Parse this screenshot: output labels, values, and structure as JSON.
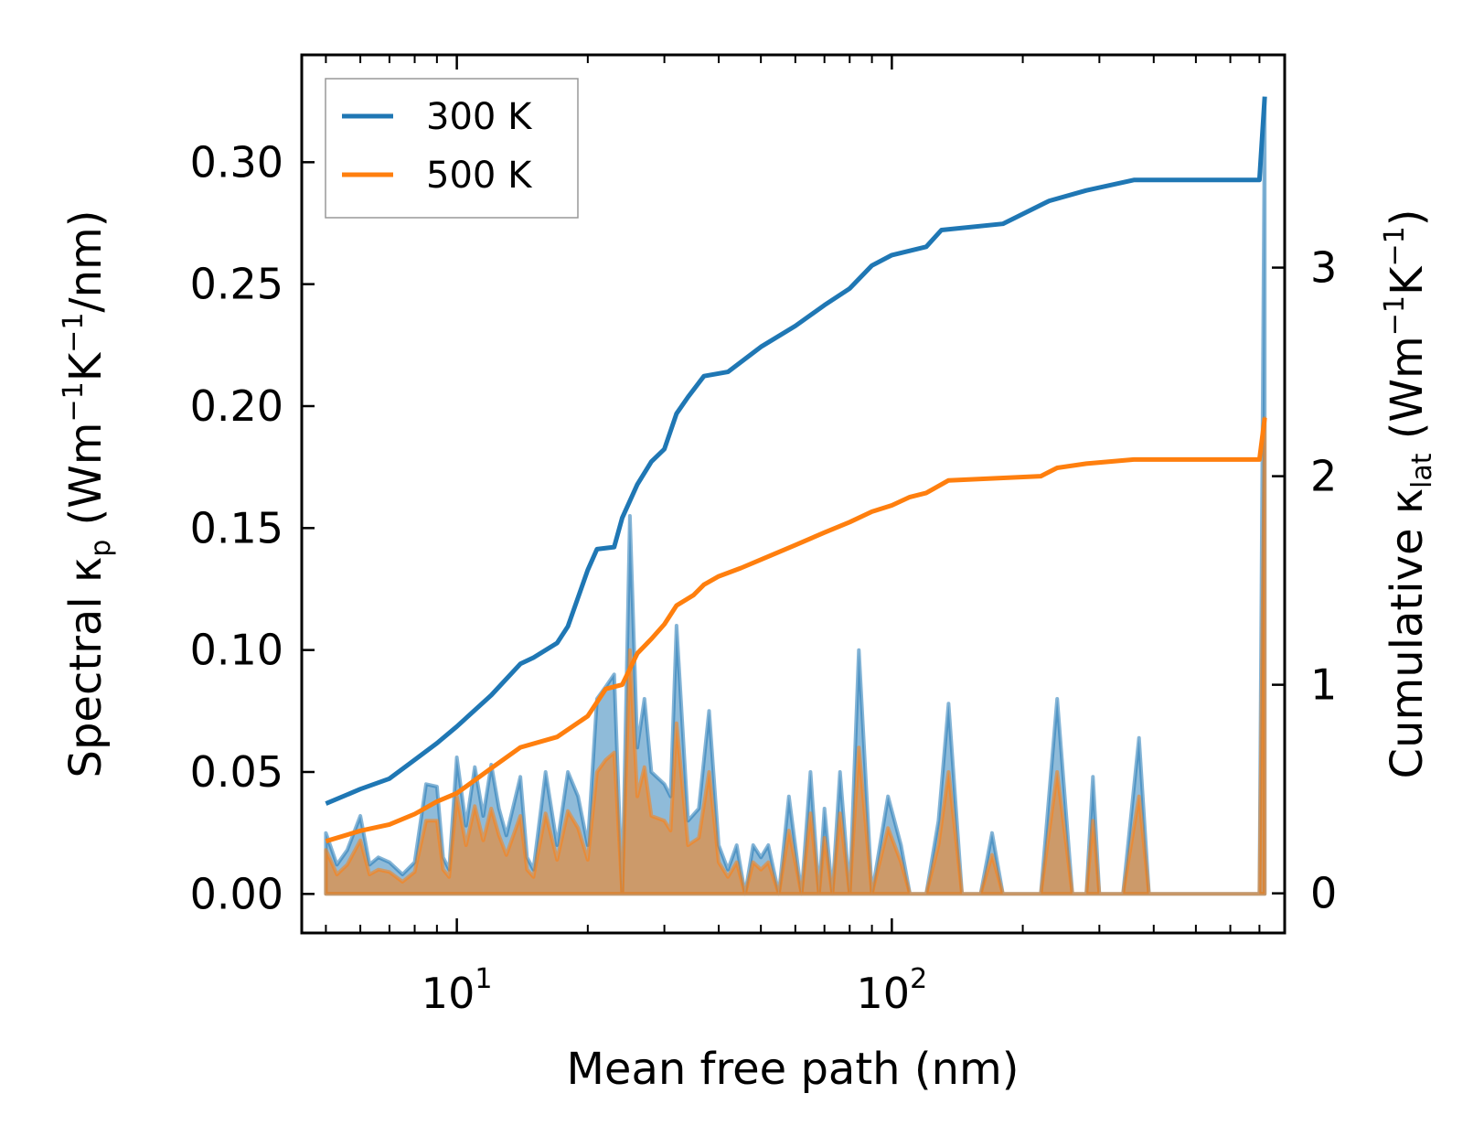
{
  "chart_data": {
    "type": "line",
    "xscale": "log",
    "xlabel": "Mean free path (nm)",
    "xlim": [
      4.4,
      800
    ],
    "xticks": [
      {
        "value": 10,
        "base": "10",
        "exp": "1"
      },
      {
        "value": 100,
        "base": "10",
        "exp": "2"
      }
    ],
    "left_axis": {
      "label_prefix": "Spectral κ",
      "label_sub": "p",
      "label_unit_open": " (Wm",
      "label_exp1": "−1",
      "label_k": "K",
      "label_exp2": "−1",
      "label_unit_close": "/nm)",
      "ylim": [
        -0.016,
        0.344
      ],
      "ticks": [
        0.0,
        0.05,
        0.1,
        0.15,
        0.2,
        0.25,
        0.3
      ],
      "tick_labels": [
        "0.00",
        "0.05",
        "0.10",
        "0.15",
        "0.20",
        "0.25",
        "0.30"
      ]
    },
    "right_axis": {
      "label_prefix": "Cumulative κ",
      "label_sub": "lat",
      "label_unit_open": " (Wm",
      "label_exp1": "−1",
      "label_k": "K",
      "label_exp2": "−1",
      "label_unit_close": ")",
      "ylim": [
        -0.19,
        4.02
      ],
      "ticks": [
        0,
        1,
        2,
        3
      ],
      "tick_labels": [
        "0",
        "1",
        "2",
        "3"
      ]
    },
    "legend": {
      "position": "top-left",
      "entries": [
        "300 K",
        "500 K"
      ]
    },
    "colors": {
      "300 K": "#1f77b4",
      "500 K": "#ff7f0e"
    },
    "series": [
      {
        "name": "300 K",
        "cumulative": [
          [
            5,
            0.43
          ],
          [
            6,
            0.5
          ],
          [
            7,
            0.55
          ],
          [
            8,
            0.64
          ],
          [
            9,
            0.72
          ],
          [
            10,
            0.8
          ],
          [
            12,
            0.95
          ],
          [
            14,
            1.1
          ],
          [
            15,
            1.13
          ],
          [
            17,
            1.2
          ],
          [
            18,
            1.28
          ],
          [
            20,
            1.55
          ],
          [
            21,
            1.65
          ],
          [
            23,
            1.66
          ],
          [
            24,
            1.8
          ],
          [
            26,
            1.96
          ],
          [
            28,
            2.07
          ],
          [
            30,
            2.13
          ],
          [
            32,
            2.3
          ],
          [
            34,
            2.38
          ],
          [
            37,
            2.48
          ],
          [
            42,
            2.5
          ],
          [
            50,
            2.62
          ],
          [
            60,
            2.72
          ],
          [
            70,
            2.82
          ],
          [
            80,
            2.9
          ],
          [
            90,
            3.01
          ],
          [
            100,
            3.06
          ],
          [
            120,
            3.1
          ],
          [
            130,
            3.18
          ],
          [
            180,
            3.21
          ],
          [
            230,
            3.32
          ],
          [
            280,
            3.37
          ],
          [
            360,
            3.42
          ],
          [
            700,
            3.42
          ],
          [
            720,
            3.82
          ]
        ],
        "spectral": [
          [
            5,
            0.025
          ],
          [
            5.3,
            0.012
          ],
          [
            5.6,
            0.018
          ],
          [
            6,
            0.032
          ],
          [
            6.3,
            0.012
          ],
          [
            6.6,
            0.015
          ],
          [
            7,
            0.013
          ],
          [
            7.5,
            0.008
          ],
          [
            8,
            0.013
          ],
          [
            8.5,
            0.045
          ],
          [
            9,
            0.044
          ],
          [
            9.3,
            0.015
          ],
          [
            9.6,
            0.01
          ],
          [
            10,
            0.056
          ],
          [
            10.5,
            0.028
          ],
          [
            11,
            0.052
          ],
          [
            11.5,
            0.032
          ],
          [
            12,
            0.053
          ],
          [
            12.5,
            0.035
          ],
          [
            13,
            0.024
          ],
          [
            14,
            0.048
          ],
          [
            14.5,
            0.015
          ],
          [
            15,
            0.01
          ],
          [
            16,
            0.05
          ],
          [
            17,
            0.02
          ],
          [
            18,
            0.05
          ],
          [
            19,
            0.04
          ],
          [
            20,
            0.02
          ],
          [
            21,
            0.08
          ],
          [
            22,
            0.085
          ],
          [
            23,
            0.09
          ],
          [
            24,
            0.0
          ],
          [
            25,
            0.155
          ],
          [
            26,
            0.06
          ],
          [
            27,
            0.08
          ],
          [
            28,
            0.05
          ],
          [
            30,
            0.045
          ],
          [
            31,
            0.04
          ],
          [
            32,
            0.11
          ],
          [
            34,
            0.03
          ],
          [
            36,
            0.035
          ],
          [
            38,
            0.075
          ],
          [
            40,
            0.02
          ],
          [
            42,
            0.01
          ],
          [
            44,
            0.02
          ],
          [
            46,
            0.0
          ],
          [
            48,
            0.02
          ],
          [
            50,
            0.015
          ],
          [
            52,
            0.02
          ],
          [
            55,
            0.0
          ],
          [
            58,
            0.04
          ],
          [
            62,
            0.0
          ],
          [
            65,
            0.05
          ],
          [
            68,
            0.0
          ],
          [
            70,
            0.035
          ],
          [
            73,
            0.0
          ],
          [
            76,
            0.05
          ],
          [
            80,
            0.0
          ],
          [
            84,
            0.1
          ],
          [
            90,
            0.0
          ],
          [
            98,
            0.04
          ],
          [
            105,
            0.02
          ],
          [
            110,
            0.0
          ],
          [
            120,
            0.0
          ],
          [
            128,
            0.03
          ],
          [
            135,
            0.078
          ],
          [
            145,
            0.0
          ],
          [
            160,
            0.0
          ],
          [
            170,
            0.025
          ],
          [
            180,
            0.0
          ],
          [
            220,
            0.0
          ],
          [
            240,
            0.08
          ],
          [
            260,
            0.0
          ],
          [
            280,
            0.0
          ],
          [
            290,
            0.048
          ],
          [
            300,
            0.0
          ],
          [
            340,
            0.0
          ],
          [
            370,
            0.064
          ],
          [
            390,
            0.0
          ],
          [
            700,
            0.0
          ],
          [
            720,
            0.325
          ]
        ]
      },
      {
        "name": "500 K",
        "cumulative": [
          [
            5,
            0.25
          ],
          [
            6,
            0.3
          ],
          [
            7,
            0.33
          ],
          [
            8,
            0.38
          ],
          [
            9,
            0.44
          ],
          [
            10,
            0.48
          ],
          [
            12,
            0.6
          ],
          [
            14,
            0.7
          ],
          [
            17,
            0.75
          ],
          [
            20,
            0.85
          ],
          [
            22,
            0.98
          ],
          [
            24,
            1.0
          ],
          [
            26,
            1.15
          ],
          [
            28,
            1.22
          ],
          [
            30,
            1.29
          ],
          [
            32,
            1.38
          ],
          [
            35,
            1.43
          ],
          [
            37,
            1.48
          ],
          [
            40,
            1.52
          ],
          [
            45,
            1.56
          ],
          [
            50,
            1.6
          ],
          [
            60,
            1.67
          ],
          [
            70,
            1.73
          ],
          [
            80,
            1.78
          ],
          [
            90,
            1.83
          ],
          [
            100,
            1.86
          ],
          [
            110,
            1.9
          ],
          [
            120,
            1.92
          ],
          [
            135,
            1.98
          ],
          [
            220,
            2.0
          ],
          [
            240,
            2.04
          ],
          [
            280,
            2.06
          ],
          [
            360,
            2.08
          ],
          [
            700,
            2.08
          ],
          [
            720,
            2.28
          ]
        ],
        "spectral": [
          [
            5,
            0.018
          ],
          [
            5.3,
            0.008
          ],
          [
            5.6,
            0.012
          ],
          [
            6,
            0.022
          ],
          [
            6.3,
            0.008
          ],
          [
            6.6,
            0.01
          ],
          [
            7,
            0.009
          ],
          [
            7.5,
            0.005
          ],
          [
            8,
            0.009
          ],
          [
            8.5,
            0.03
          ],
          [
            9,
            0.03
          ],
          [
            9.3,
            0.01
          ],
          [
            9.6,
            0.007
          ],
          [
            10,
            0.04
          ],
          [
            10.5,
            0.02
          ],
          [
            11,
            0.036
          ],
          [
            11.5,
            0.022
          ],
          [
            12,
            0.035
          ],
          [
            12.5,
            0.024
          ],
          [
            13,
            0.016
          ],
          [
            14,
            0.032
          ],
          [
            14.5,
            0.01
          ],
          [
            15,
            0.007
          ],
          [
            16,
            0.033
          ],
          [
            17,
            0.014
          ],
          [
            18,
            0.034
          ],
          [
            19,
            0.027
          ],
          [
            20,
            0.014
          ],
          [
            21,
            0.05
          ],
          [
            22,
            0.055
          ],
          [
            23,
            0.058
          ],
          [
            24,
            0.0
          ],
          [
            25,
            0.1
          ],
          [
            26,
            0.04
          ],
          [
            27,
            0.052
          ],
          [
            28,
            0.032
          ],
          [
            30,
            0.03
          ],
          [
            31,
            0.026
          ],
          [
            32,
            0.07
          ],
          [
            34,
            0.02
          ],
          [
            36,
            0.023
          ],
          [
            38,
            0.05
          ],
          [
            40,
            0.013
          ],
          [
            42,
            0.007
          ],
          [
            44,
            0.013
          ],
          [
            46,
            0.0
          ],
          [
            48,
            0.013
          ],
          [
            50,
            0.01
          ],
          [
            52,
            0.013
          ],
          [
            55,
            0.0
          ],
          [
            58,
            0.026
          ],
          [
            62,
            0.0
          ],
          [
            65,
            0.033
          ],
          [
            68,
            0.0
          ],
          [
            70,
            0.023
          ],
          [
            73,
            0.0
          ],
          [
            76,
            0.033
          ],
          [
            80,
            0.0
          ],
          [
            84,
            0.06
          ],
          [
            90,
            0.0
          ],
          [
            98,
            0.027
          ],
          [
            105,
            0.013
          ],
          [
            110,
            0.0
          ],
          [
            120,
            0.0
          ],
          [
            128,
            0.02
          ],
          [
            135,
            0.05
          ],
          [
            145,
            0.0
          ],
          [
            160,
            0.0
          ],
          [
            170,
            0.016
          ],
          [
            180,
            0.0
          ],
          [
            220,
            0.0
          ],
          [
            240,
            0.05
          ],
          [
            260,
            0.0
          ],
          [
            280,
            0.0
          ],
          [
            290,
            0.03
          ],
          [
            300,
            0.0
          ],
          [
            340,
            0.0
          ],
          [
            370,
            0.04
          ],
          [
            390,
            0.0
          ],
          [
            700,
            0.0
          ],
          [
            720,
            0.195
          ]
        ]
      }
    ]
  }
}
